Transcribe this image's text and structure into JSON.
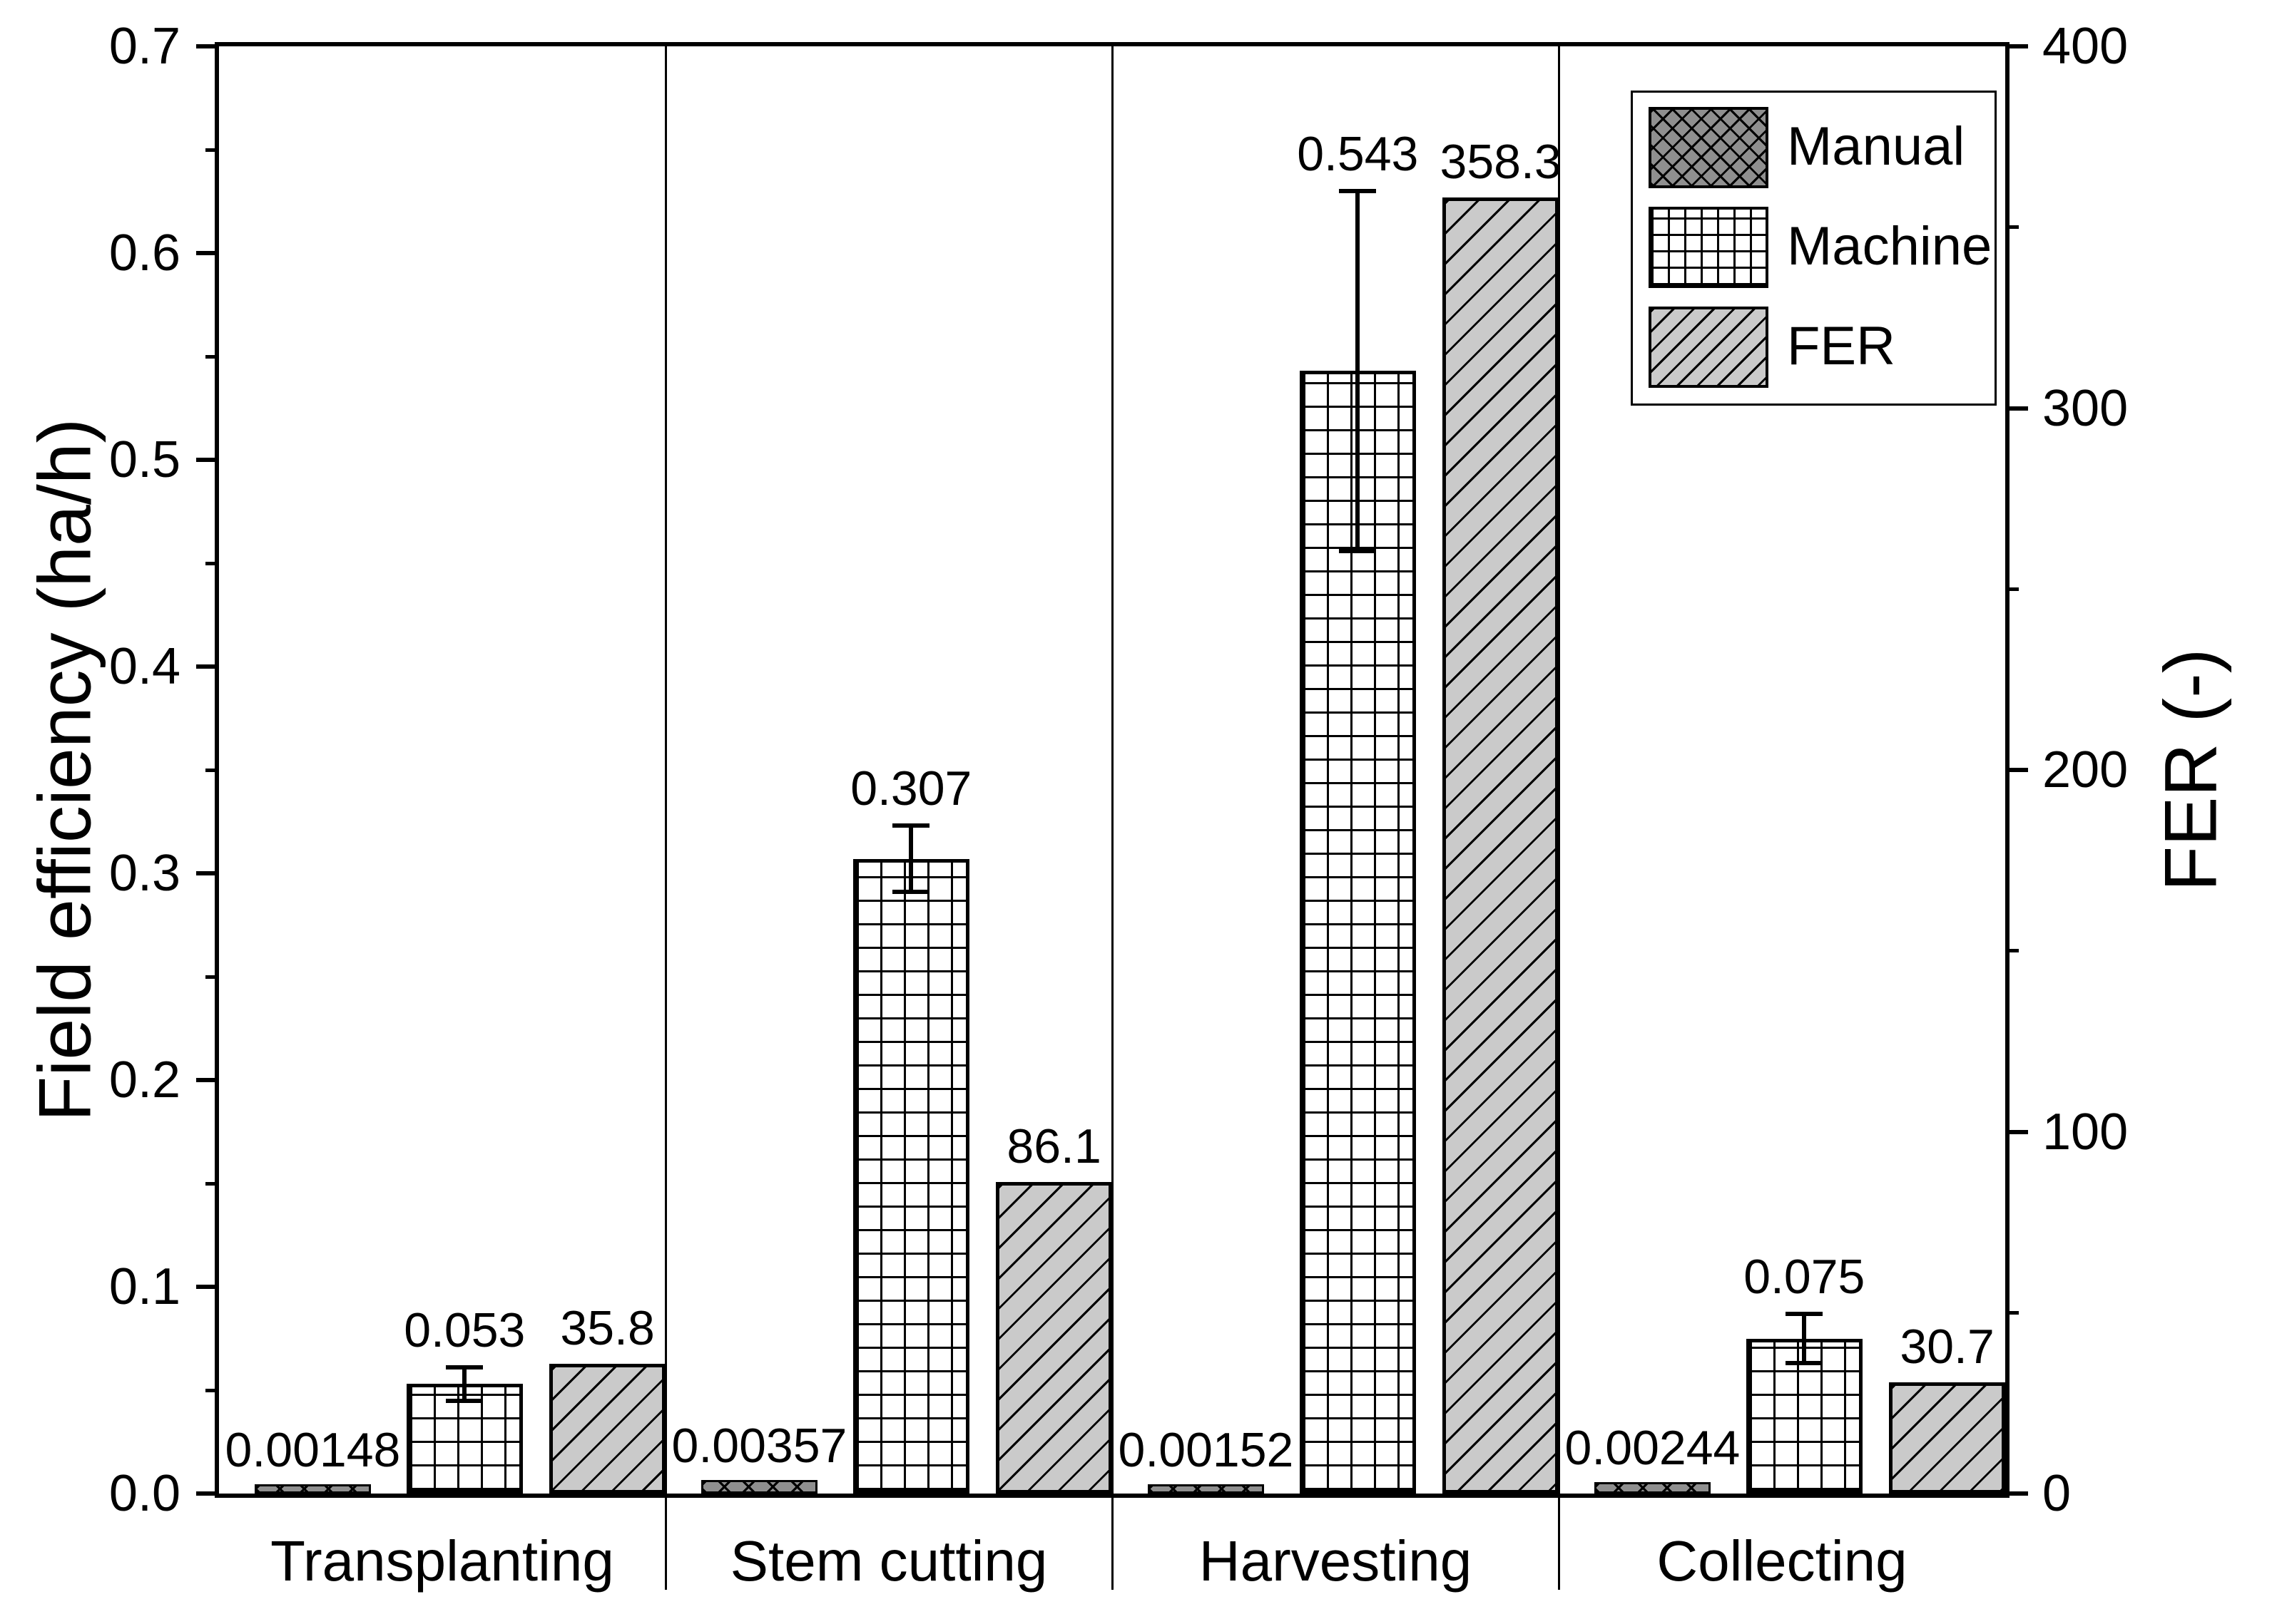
{
  "chart_data": {
    "type": "bar",
    "title": "",
    "categories": [
      "Transplanting",
      "Stem cutting",
      "Harvesting",
      "Collecting"
    ],
    "series": [
      {
        "name": "Manual",
        "axis": "left",
        "pattern": "crosshatch",
        "fill": "#8f8f8f",
        "values": [
          0.00148,
          0.00357,
          0.00152,
          0.00244
        ],
        "labels": [
          "0.00148",
          "0.00357",
          "0.00152",
          "0.00244"
        ]
      },
      {
        "name": "Machine",
        "axis": "left",
        "pattern": "grid",
        "fill": "#ffffff",
        "values": [
          0.053,
          0.307,
          0.543,
          0.075
        ],
        "errors": [
          0.008,
          0.016,
          0.087,
          0.012
        ],
        "labels": [
          "0.053",
          "0.307",
          "0.543",
          "0.075"
        ]
      },
      {
        "name": "FER",
        "axis": "right",
        "pattern": "diagonal",
        "fill": "#cacaca",
        "values": [
          35.8,
          86.1,
          358.3,
          30.7
        ],
        "labels": [
          "35.8",
          "86.1",
          "358.3",
          "30.7"
        ]
      }
    ],
    "left_axis": {
      "label": "Field efficiency (ha/h)",
      "min": 0.0,
      "max": 0.7,
      "major_ticks": [
        "0.0",
        "0.1",
        "0.2",
        "0.3",
        "0.4",
        "0.5",
        "0.6",
        "0.7"
      ],
      "minor_step": 0.05
    },
    "right_axis": {
      "label": "FER (-)",
      "min": 0,
      "max": 400,
      "major_ticks": [
        "0",
        "100",
        "200",
        "300",
        "400"
      ],
      "minor_step": 50
    },
    "legend": {
      "position": "top-right",
      "entries": [
        "Manual",
        "Machine",
        "FER"
      ]
    },
    "grid": false,
    "colors": {
      "ink": "#000000",
      "manual_fill": "#8f8f8f",
      "machine_fill": "#ffffff",
      "fer_fill": "#cacaca",
      "background": "#ffffff"
    }
  }
}
